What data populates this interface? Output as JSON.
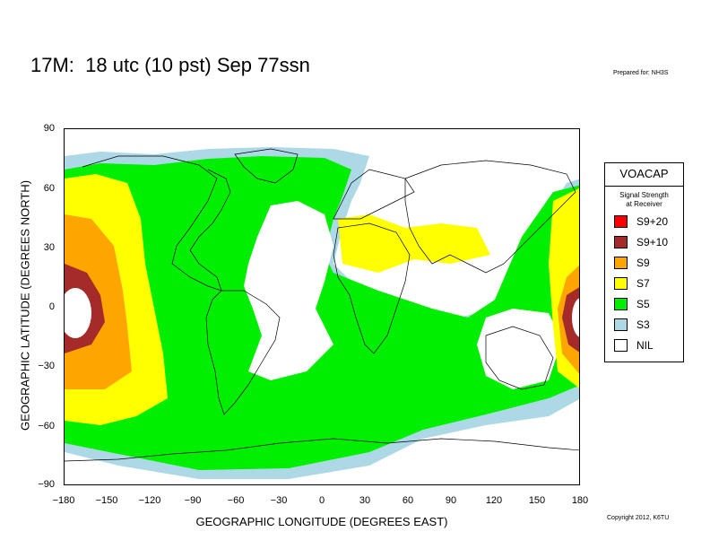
{
  "header": {
    "title": "17M:  18 utc (10 pst) Sep 77ssn",
    "prepared_for": "Prepared for: NH3S"
  },
  "footer": {
    "copyright": "Copyright 2012, K6TU"
  },
  "axes": {
    "xlabel": "GEOGRAPHIC LONGITUDE (DEGREES EAST)",
    "ylabel": "GEOGRAPHIC LATITUDE (DEGREES NORTH)",
    "xticks": [
      "−180",
      "−150",
      "−120",
      "−90",
      "−60",
      "−30",
      "0",
      "30",
      "60",
      "90",
      "120",
      "150",
      "180"
    ],
    "yticks": [
      "90",
      "60",
      "30",
      "0",
      "−30",
      "−60",
      "−90"
    ],
    "xlim": [
      -180,
      180
    ],
    "ylim": [
      -90,
      90
    ]
  },
  "legend": {
    "title": "VOACAP",
    "subtitle_line1": "Signal Strength",
    "subtitle_line2": "at Receiver",
    "items": [
      {
        "label": "S9+20",
        "color": "#ff0000"
      },
      {
        "label": "S9+10",
        "color": "#a52a2a"
      },
      {
        "label": "S9",
        "color": "#ffa500"
      },
      {
        "label": "S7",
        "color": "#ffff00"
      },
      {
        "label": "S5",
        "color": "#00ee00"
      },
      {
        "label": "S3",
        "color": "#add8e6"
      },
      {
        "label": "NIL",
        "color": "#ffffff"
      }
    ]
  },
  "colors": {
    "land_outline": "#000000",
    "background": "#ffffff"
  }
}
